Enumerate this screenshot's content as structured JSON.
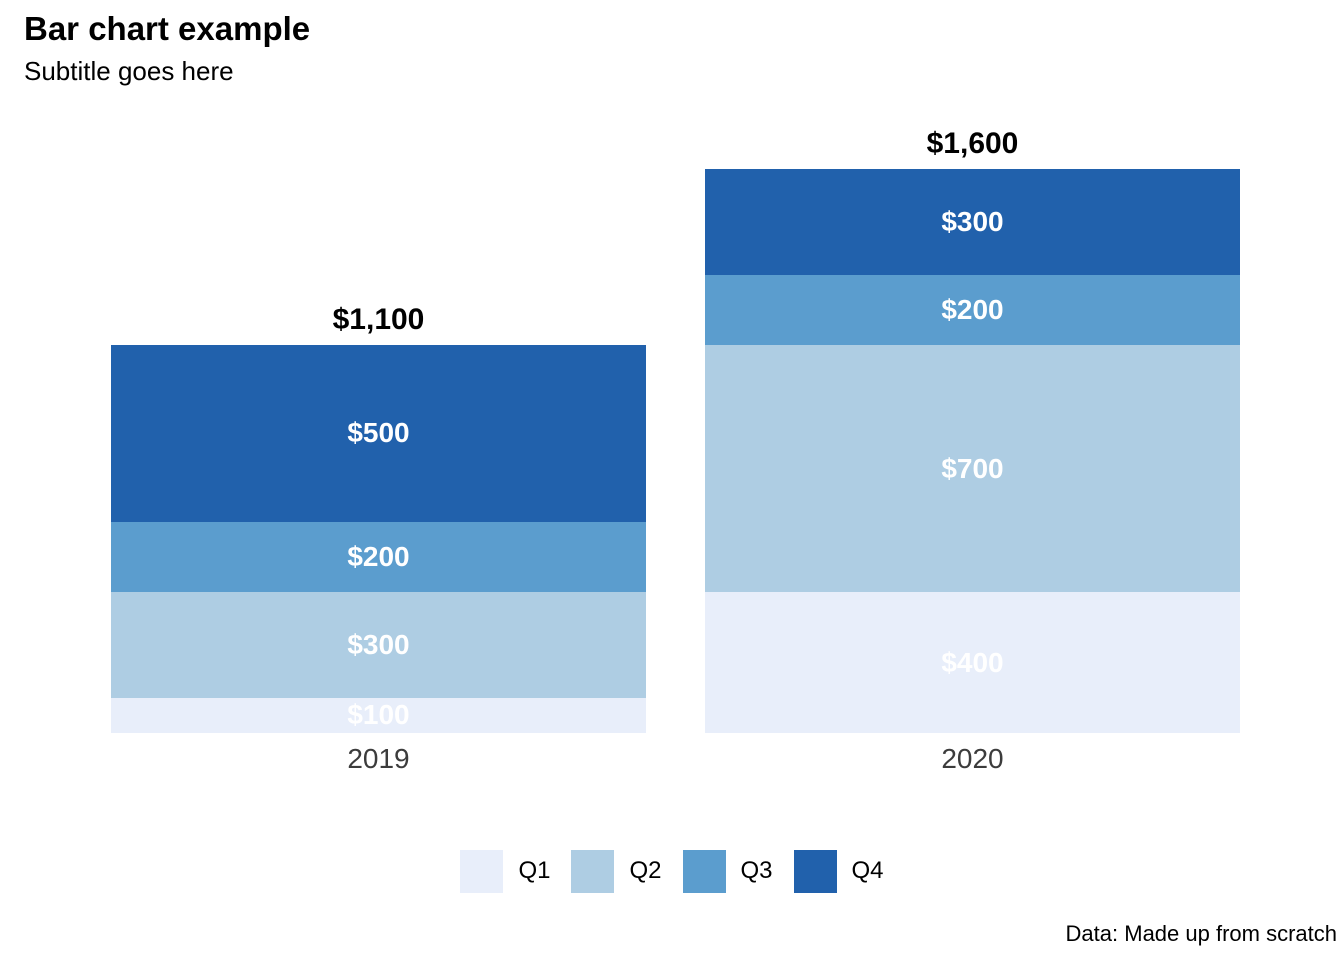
{
  "header": {
    "title": "Bar chart example",
    "subtitle": "Subtitle goes here"
  },
  "caption": "Data: Made up from scratch",
  "colors": {
    "q1": "#E8EEFA",
    "q2": "#AECDE3",
    "q3": "#5B9DCE",
    "q4": "#2161AC",
    "total_label": "#000000",
    "axis_label": "#3C3C3C",
    "segment_label": "#FFFFFF",
    "background": "#FFFFFF"
  },
  "chart_data": {
    "type": "bar",
    "stacked": true,
    "title": "Bar chart example",
    "subtitle": "Subtitle goes here",
    "caption": "Data: Made up from scratch",
    "categories": [
      "2019",
      "2020"
    ],
    "series": [
      {
        "name": "Q1",
        "values": [
          100,
          400
        ],
        "color": "#E8EEFA"
      },
      {
        "name": "Q2",
        "values": [
          300,
          700
        ],
        "color": "#AECDE3"
      },
      {
        "name": "Q3",
        "values": [
          200,
          200
        ],
        "color": "#5B9DCE"
      },
      {
        "name": "Q4",
        "values": [
          500,
          300
        ],
        "color": "#2161AC"
      }
    ],
    "totals": [
      1100,
      1600
    ],
    "total_labels": [
      "$1,100",
      "$1,600"
    ],
    "segment_labels": [
      [
        "$100",
        "$300",
        "$200",
        "$500"
      ],
      [
        "$400",
        "$700",
        "$200",
        "$300"
      ]
    ],
    "value_axis_max": 1600,
    "grid": false,
    "axes_shown": false,
    "legend_position": "bottom",
    "legend_entries": [
      "Q1",
      "Q2",
      "Q3",
      "Q4"
    ]
  }
}
